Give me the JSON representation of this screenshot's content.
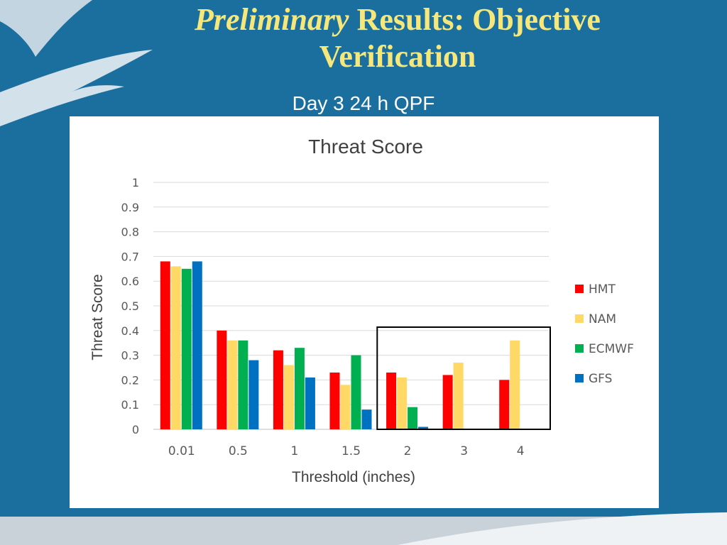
{
  "slide": {
    "title_em": "Preliminary",
    "title_rest": " Results: Objective Verification",
    "subtitle": "Day 3 24 h QPF"
  },
  "colors": {
    "background": "#1b6f9e",
    "title": "#f5e77a",
    "hmt": "#ff0000",
    "nam": "#ffd966",
    "ecmwf": "#00b050",
    "gfs": "#0070c0"
  },
  "chart_data": {
    "type": "bar",
    "title": "Threat Score",
    "xlabel": "Threshold (inches)",
    "ylabel": "Threat Score",
    "categories": [
      "0.01",
      "0.5",
      "1",
      "1.5",
      "2",
      "3",
      "4"
    ],
    "ylim": [
      0,
      1
    ],
    "yticks": [
      "0",
      "0.1",
      "0.2",
      "0.3",
      "0.4",
      "0.5",
      "0.6",
      "0.7",
      "0.8",
      "0.9",
      "1"
    ],
    "grid": true,
    "legend_position": "right",
    "highlight_box_categories": [
      "2",
      "3",
      "4"
    ],
    "series": [
      {
        "name": "HMT",
        "color": "#ff0000",
        "values": [
          0.68,
          0.4,
          0.32,
          0.23,
          0.23,
          0.22,
          0.2
        ]
      },
      {
        "name": "NAM",
        "color": "#ffd966",
        "values": [
          0.66,
          0.36,
          0.26,
          0.18,
          0.21,
          0.27,
          0.36
        ]
      },
      {
        "name": "ECMWF",
        "color": "#00b050",
        "values": [
          0.65,
          0.36,
          0.33,
          0.3,
          0.09,
          null,
          null
        ]
      },
      {
        "name": "GFS",
        "color": "#0070c0",
        "values": [
          0.68,
          0.28,
          0.21,
          0.08,
          0.01,
          null,
          null
        ]
      }
    ]
  }
}
